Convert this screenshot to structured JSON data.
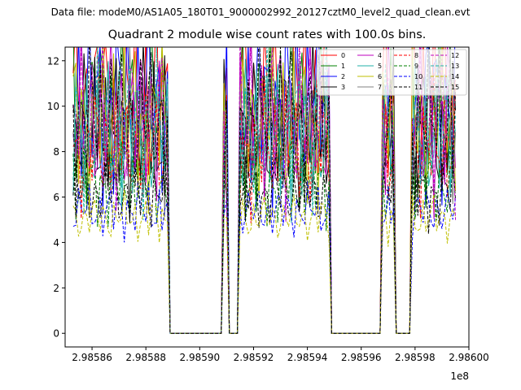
{
  "suptitle": "Data file: modeM0/AS1A05_180T01_9000002992_20127cztM0_level2_quad_clean.evt",
  "chart_data": {
    "type": "line",
    "title": "Quadrant 2 module wise count rates with 100.0s bins.",
    "xlabel": "",
    "ylabel": "",
    "x_offset_label": "1e8",
    "xlim": [
      298585000,
      298600000
    ],
    "ylim": [
      -0.6,
      12.6
    ],
    "x_ticks": [
      298586000,
      298588000,
      298590000,
      298592000,
      298594000,
      298596000,
      298598000,
      298600000
    ],
    "x_tick_labels": [
      "2.98586",
      "2.98588",
      "2.98590",
      "2.98592",
      "2.98594",
      "2.98596",
      "2.98598",
      "2.98600"
    ],
    "y_ticks": [
      0,
      2,
      4,
      6,
      8,
      10,
      12
    ],
    "y_tick_labels": [
      "0",
      "2",
      "4",
      "6",
      "8",
      "10",
      "12"
    ],
    "grid": false,
    "legend_position": "top-right",
    "bin_seconds": 100,
    "x_start": 298585300,
    "x_end": 298599500,
    "active_intervals": [
      [
        298585300,
        298588800
      ],
      [
        298590900,
        298591000
      ],
      [
        298591500,
        298594800
      ],
      [
        298596800,
        298597200
      ],
      [
        298597900,
        298599500
      ]
    ],
    "series": [
      {
        "name": "0",
        "color": "#ff0000",
        "dash": "solid",
        "level": 10.3
      },
      {
        "name": "1",
        "color": "#008000",
        "dash": "solid",
        "level": 9.9
      },
      {
        "name": "2",
        "color": "#0000ff",
        "dash": "solid",
        "level": 10.2
      },
      {
        "name": "3",
        "color": "#000000",
        "dash": "solid",
        "level": 9.1
      },
      {
        "name": "4",
        "color": "#bf00bf",
        "dash": "solid",
        "level": 9.6
      },
      {
        "name": "5",
        "color": "#20b2aa",
        "dash": "solid",
        "level": 8.7
      },
      {
        "name": "6",
        "color": "#bfbf00",
        "dash": "solid",
        "level": 9.4
      },
      {
        "name": "7",
        "color": "#808080",
        "dash": "solid",
        "level": 9.0
      },
      {
        "name": "8",
        "color": "#ff0000",
        "dash": "dashed",
        "level": 8.2
      },
      {
        "name": "9",
        "color": "#008000",
        "dash": "dashed",
        "level": 6.6
      },
      {
        "name": "10",
        "color": "#0000ff",
        "dash": "dashed",
        "level": 5.4
      },
      {
        "name": "11",
        "color": "#000000",
        "dash": "dashed",
        "level": 6.2
      },
      {
        "name": "12",
        "color": "#bf00bf",
        "dash": "dashed",
        "level": 9.3
      },
      {
        "name": "13",
        "color": "#20b2aa",
        "dash": "dashed",
        "level": 9.0
      },
      {
        "name": "14",
        "color": "#bfbf00",
        "dash": "dashed",
        "level": 5.1
      },
      {
        "name": "15",
        "color": "#000000",
        "dash": "dashed",
        "level": 9.5
      }
    ]
  }
}
